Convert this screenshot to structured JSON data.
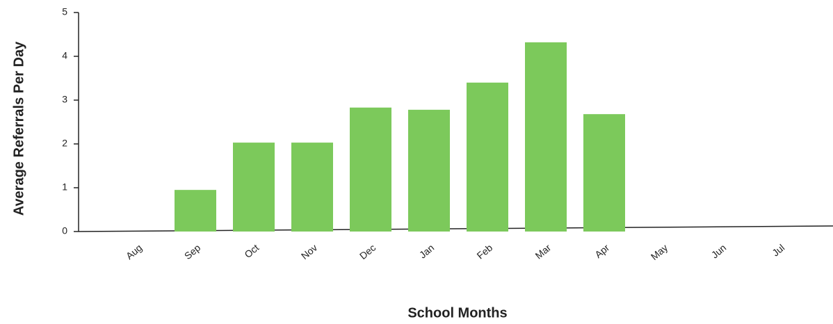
{
  "chart_data": {
    "type": "bar",
    "y_label": "Average Referrals Per Day",
    "x_label": "School Months",
    "categories": [
      "Aug",
      "Sep",
      "Oct",
      "Nov",
      "Dec",
      "Jan",
      "Feb",
      "Mar",
      "Apr",
      "May",
      "Jun",
      "Jul"
    ],
    "values": [
      null,
      0.95,
      2.03,
      2.03,
      2.83,
      2.78,
      3.4,
      4.32,
      2.68,
      null,
      null,
      null
    ],
    "color": "#7cc95b",
    "ylim": [
      0,
      5
    ],
    "yticks": [
      0,
      1,
      2,
      3,
      4,
      5
    ],
    "grid": false
  }
}
